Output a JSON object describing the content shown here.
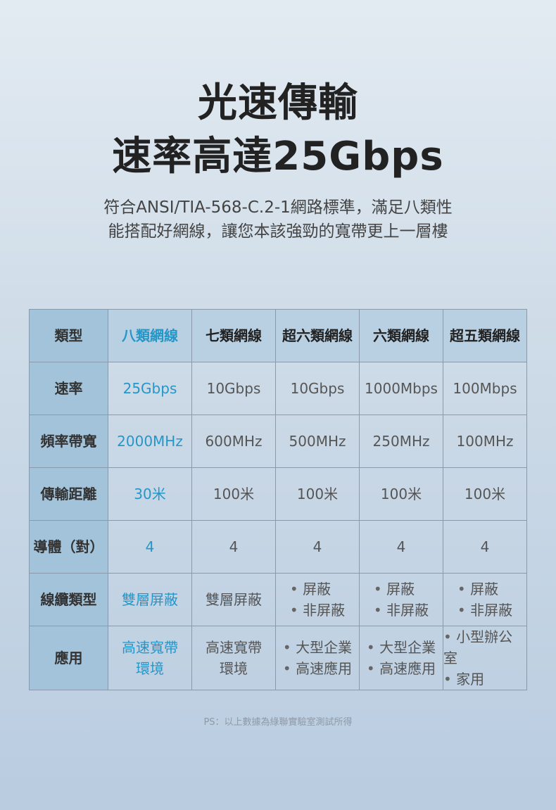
{
  "title": {
    "line1": "光速傳輸",
    "line2": "速率高達25Gbps"
  },
  "subtitle": {
    "line1": "符合ANSI/TIA-568-C.2-1網路標準，滿足八類性",
    "line2": "能搭配好網線，讓您本該強勁的寬帶更上一層樓"
  },
  "table": {
    "headers": [
      "類型",
      "八類網線",
      "七類網線",
      "超六類網線",
      "六類網線",
      "超五類網線"
    ],
    "rows": [
      {
        "label": "速率",
        "cells": [
          "25Gbps",
          "10Gbps",
          "10Gbps",
          "1000Mbps",
          "100Mbps"
        ]
      },
      {
        "label": "頻率帶寬",
        "cells": [
          "2000MHz",
          "600MHz",
          "500MHz",
          "250MHz",
          "100MHz"
        ]
      },
      {
        "label": "傳輸距離",
        "cells": [
          "30米",
          "100米",
          "100米",
          "100米",
          "100米"
        ]
      },
      {
        "label": "導體（對）",
        "cells": [
          "4",
          "4",
          "4",
          "4",
          "4"
        ]
      },
      {
        "label": "線纜類型",
        "cells": [
          "雙層屏蔽",
          "雙層屏蔽",
          [
            "屏蔽",
            "非屏蔽"
          ],
          [
            "屏蔽",
            "非屏蔽"
          ],
          [
            "屏蔽",
            "非屏蔽"
          ]
        ]
      },
      {
        "label": "應用",
        "cells": [
          [
            "高速寬帶",
            "環境"
          ],
          [
            "高速寬帶",
            "環境"
          ],
          [
            "大型企業",
            "高速應用"
          ],
          [
            "大型企業",
            "高速應用"
          ],
          [
            "小型辦公室",
            "家用"
          ]
        ]
      }
    ]
  },
  "note": "PS：以上數據為綠聯實驗室測試所得",
  "colors": {
    "highlight": "#2596c8",
    "label_column": "#a2c3da"
  }
}
